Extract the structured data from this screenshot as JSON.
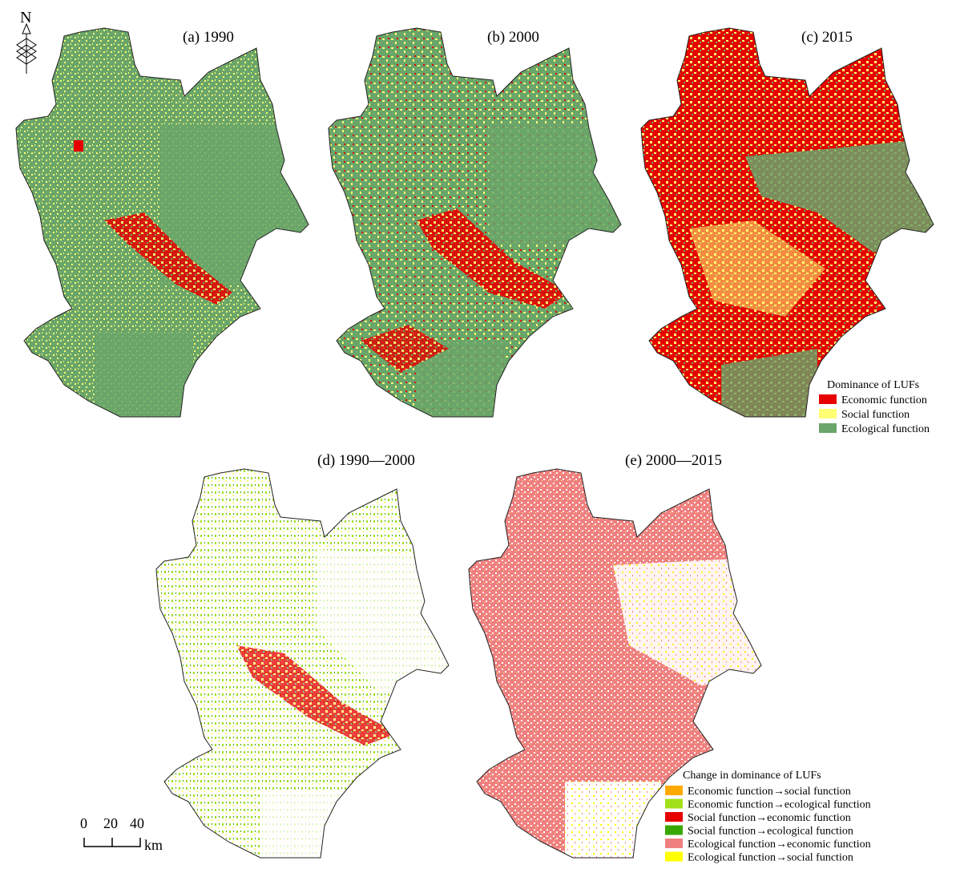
{
  "panels": [
    {
      "title": "(a) 1990"
    },
    {
      "title": "(b) 2000"
    },
    {
      "title": "(c) 2015"
    },
    {
      "title": "(d) 1990—2000"
    },
    {
      "title": "(e) 2000—2015"
    }
  ],
  "legend_dominance": {
    "title": "Dominance of LUFs",
    "items": [
      {
        "label": "Economic function",
        "color": "#e60000"
      },
      {
        "label": "Social function",
        "color": "#ffff73"
      },
      {
        "label": "Ecological function",
        "color": "#6aa56a"
      }
    ]
  },
  "legend_change": {
    "title": "Change in dominance of LUFs",
    "items": [
      {
        "label": "Economic function→social function",
        "color": "#ffaa00"
      },
      {
        "label": "Economic function→ecological function",
        "color": "#a3e01c"
      },
      {
        "label": "Social function→economic function",
        "color": "#e60000"
      },
      {
        "label": "Social function→ecological function",
        "color": "#38a800"
      },
      {
        "label": "Ecological function→economic function",
        "color": "#f08080"
      },
      {
        "label": "Ecological function→social function",
        "color": "#ffff00"
      }
    ]
  },
  "north": "N",
  "scale": {
    "labels": [
      "0",
      "20",
      "40"
    ],
    "unit": "km"
  }
}
